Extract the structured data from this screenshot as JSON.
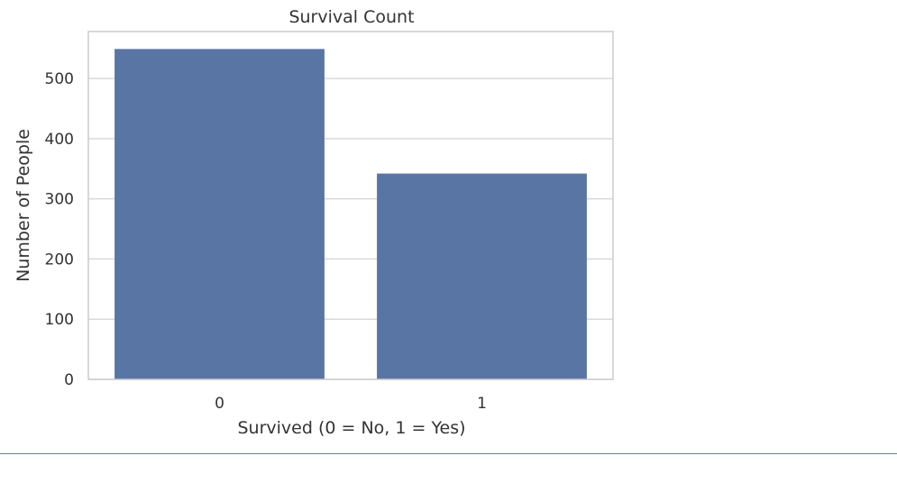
{
  "chart_data": {
    "type": "bar",
    "title": "Survival Count",
    "xlabel": "Survived (0 = No, 1 = Yes)",
    "ylabel": "Number of People",
    "categories": [
      "0",
      "1"
    ],
    "values": [
      549,
      342
    ],
    "ylim": [
      0,
      578
    ],
    "yticks": [
      0,
      100,
      200,
      300,
      400,
      500
    ],
    "grid": true,
    "bar_color": "#5975a4",
    "grid_color": "#d9d9d9",
    "spine_color": "#cccccc"
  },
  "divider_color": "#2a9d9d"
}
